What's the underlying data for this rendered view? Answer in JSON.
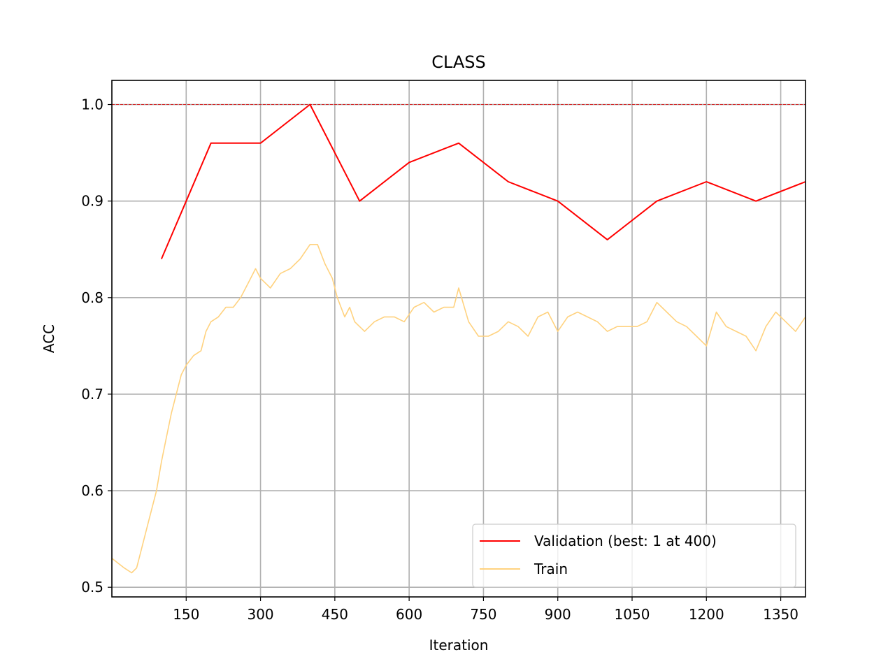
{
  "chart_data": {
    "type": "line",
    "title": "CLASS",
    "xlabel": "Iteration",
    "ylabel": "ACC",
    "xlim": [
      0,
      1400
    ],
    "ylim": [
      0.49,
      1.025
    ],
    "xticks": [
      150,
      300,
      450,
      600,
      750,
      900,
      1050,
      1200,
      1350
    ],
    "yticks": [
      0.5,
      0.6,
      0.7,
      0.8,
      0.9,
      1.0
    ],
    "ytick_labels": [
      "0.5",
      "0.6",
      "0.7",
      "0.8",
      "0.9",
      "1.0"
    ],
    "grid": true,
    "legend_position": "lower-right",
    "reference_line": {
      "y": 1.0,
      "color": "#d62728",
      "style": "dashed"
    },
    "series": [
      {
        "name": "Validation (best: 1 at 400)",
        "color": "#ff0000",
        "x": [
          100,
          150,
          200,
          300,
          400,
          500,
          600,
          700,
          800,
          900,
          1000,
          1100,
          1200,
          1300,
          1400
        ],
        "y": [
          0.84,
          0.9,
          0.96,
          0.96,
          1.0,
          0.9,
          0.94,
          0.96,
          0.92,
          0.9,
          0.86,
          0.9,
          0.92,
          0.9,
          0.92
        ]
      },
      {
        "name": "Train",
        "color": "#ffd27f",
        "x": [
          0,
          25,
          40,
          50,
          60,
          75,
          90,
          100,
          110,
          120,
          130,
          140,
          150,
          165,
          180,
          190,
          200,
          215,
          230,
          245,
          260,
          275,
          290,
          300,
          320,
          340,
          360,
          380,
          400,
          415,
          430,
          445,
          455,
          470,
          480,
          490,
          510,
          530,
          550,
          570,
          590,
          610,
          630,
          650,
          670,
          690,
          700,
          720,
          740,
          760,
          780,
          800,
          820,
          840,
          860,
          880,
          900,
          920,
          940,
          960,
          980,
          1000,
          1020,
          1040,
          1060,
          1080,
          1100,
          1120,
          1140,
          1160,
          1180,
          1200,
          1220,
          1240,
          1260,
          1280,
          1300,
          1320,
          1340,
          1360,
          1380,
          1400
        ],
        "y": [
          0.53,
          0.52,
          0.515,
          0.52,
          0.54,
          0.57,
          0.6,
          0.63,
          0.655,
          0.68,
          0.7,
          0.72,
          0.73,
          0.74,
          0.745,
          0.765,
          0.775,
          0.78,
          0.79,
          0.79,
          0.8,
          0.815,
          0.83,
          0.82,
          0.81,
          0.825,
          0.83,
          0.84,
          0.855,
          0.855,
          0.835,
          0.82,
          0.8,
          0.78,
          0.79,
          0.775,
          0.765,
          0.775,
          0.78,
          0.78,
          0.775,
          0.79,
          0.795,
          0.785,
          0.79,
          0.79,
          0.81,
          0.775,
          0.76,
          0.76,
          0.765,
          0.775,
          0.77,
          0.76,
          0.78,
          0.785,
          0.765,
          0.78,
          0.785,
          0.78,
          0.775,
          0.765,
          0.77,
          0.77,
          0.77,
          0.775,
          0.795,
          0.785,
          0.775,
          0.77,
          0.76,
          0.75,
          0.785,
          0.77,
          0.765,
          0.76,
          0.745,
          0.77,
          0.785,
          0.775,
          0.765,
          0.78
        ]
      }
    ]
  }
}
